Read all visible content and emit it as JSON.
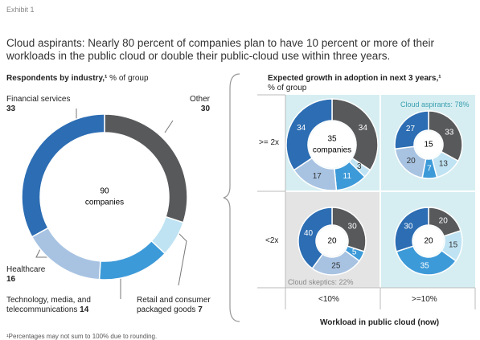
{
  "exhibit": "Exhibit 1",
  "title": "Cloud aspirants: Nearly 80 percent of companies plan to have 10 percent or more of their workloads in the public cloud or double their public-cloud use within three years.",
  "footnote": "¹Percentages may not sum to 100% due to rounding.",
  "matrix": {
    "title": "Expected growth in adoption in next 3 years,¹",
    "unit": "% of group",
    "rows": [
      ">= 2x",
      "<2x"
    ],
    "columns": [
      "<10%",
      ">=10%"
    ],
    "x_title": "Workload in public cloud (now)",
    "aspirants": "Cloud aspirants: 78%",
    "skeptics": "Cloud skeptics: 22%"
  },
  "chart_data": [
    {
      "type": "pie",
      "title": "Respondents by industry,¹",
      "subtitle": "% of group",
      "center_value": 90,
      "center_label": "companies",
      "categories": [
        "Other",
        "Retail and consumer packaged goods",
        "Technology, media, and telecommunications",
        "Healthcare",
        "Financial services"
      ],
      "values": [
        30,
        7,
        14,
        16,
        33
      ],
      "colors": [
        "#58595b",
        "#bfe3f3",
        "#3d9ad8",
        "#a8c3e2",
        "#2c6db3"
      ]
    },
    {
      "type": "pie",
      "center_value": 35,
      "center_label": "companies",
      "values": [
        34,
        3,
        11,
        17,
        34
      ],
      "colors": [
        "#58595b",
        "#bfe3f3",
        "#3d9ad8",
        "#a8c3e2",
        "#2c6db3"
      ]
    },
    {
      "type": "pie",
      "center_value": 15,
      "values": [
        33,
        13,
        7,
        20,
        27
      ],
      "colors": [
        "#58595b",
        "#bfe3f3",
        "#3d9ad8",
        "#a8c3e2",
        "#2c6db3"
      ]
    },
    {
      "type": "pie",
      "center_value": 20,
      "values": [
        30,
        5,
        25,
        40
      ],
      "colors": [
        "#58595b",
        "#3d9ad8",
        "#a8c3e2",
        "#2c6db3"
      ]
    },
    {
      "type": "pie",
      "center_value": 20,
      "values": [
        20,
        15,
        35,
        30
      ],
      "colors": [
        "#58595b",
        "#bfe3f3",
        "#3d9ad8",
        "#2c6db3"
      ]
    }
  ]
}
